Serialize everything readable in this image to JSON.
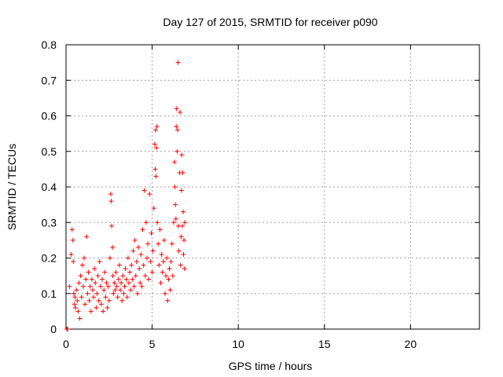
{
  "chart_data": {
    "type": "scatter",
    "title": "Day 127 of 2015, SRMTID for receiver p090",
    "xlabel": "GPS time / hours",
    "ylabel": "SRMTID / TECUs",
    "xlim": [
      0,
      24
    ],
    "ylim": [
      0,
      0.8
    ],
    "xticks": [
      0,
      5,
      10,
      15,
      20
    ],
    "xtick_labels": [
      "0",
      "5",
      "10",
      "15",
      "20"
    ],
    "yticks": [
      0,
      0.1,
      0.2,
      0.3,
      0.4,
      0.5,
      0.6,
      0.7,
      0.8
    ],
    "ytick_labels": [
      "0",
      "0.1",
      "0.2",
      "0.3",
      "0.4",
      "0.5",
      "0.6",
      "0.7",
      "0.8"
    ],
    "grid": true,
    "marker": "+",
    "color": "#ff0000",
    "series": [
      {
        "name": "p090",
        "points": [
          [
            0.05,
            0.0
          ],
          [
            0.1,
            0.0
          ],
          [
            0.2,
            0.12
          ],
          [
            0.3,
            0.21
          ],
          [
            0.35,
            0.28
          ],
          [
            0.4,
            0.25
          ],
          [
            0.42,
            0.19
          ],
          [
            0.45,
            0.1
          ],
          [
            0.5,
            0.07
          ],
          [
            0.52,
            0.09
          ],
          [
            0.55,
            0.06
          ],
          [
            0.6,
            0.11
          ],
          [
            0.65,
            0.08
          ],
          [
            0.7,
            0.05
          ],
          [
            0.75,
            0.13
          ],
          [
            0.8,
            0.03
          ],
          [
            0.85,
            0.15
          ],
          [
            0.9,
            0.09
          ],
          [
            0.95,
            0.18
          ],
          [
            1.0,
            0.12
          ],
          [
            1.05,
            0.2
          ],
          [
            1.1,
            0.07
          ],
          [
            1.15,
            0.14
          ],
          [
            1.2,
            0.26
          ],
          [
            1.25,
            0.1
          ],
          [
            1.3,
            0.16
          ],
          [
            1.35,
            0.08
          ],
          [
            1.4,
            0.12
          ],
          [
            1.45,
            0.05
          ],
          [
            1.5,
            0.14
          ],
          [
            1.55,
            0.11
          ],
          [
            1.6,
            0.09
          ],
          [
            1.65,
            0.17
          ],
          [
            1.7,
            0.13
          ],
          [
            1.75,
            0.06
          ],
          [
            1.8,
            0.1
          ],
          [
            1.85,
            0.15
          ],
          [
            1.9,
            0.08
          ],
          [
            1.95,
            0.19
          ],
          [
            2.0,
            0.12
          ],
          [
            2.05,
            0.07
          ],
          [
            2.1,
            0.14
          ],
          [
            2.15,
            0.05
          ],
          [
            2.2,
            0.11
          ],
          [
            2.25,
            0.16
          ],
          [
            2.3,
            0.09
          ],
          [
            2.35,
            0.13
          ],
          [
            2.4,
            0.06
          ],
          [
            2.45,
            0.12
          ],
          [
            2.5,
            0.08
          ],
          [
            2.55,
            0.2
          ],
          [
            2.6,
            0.38
          ],
          [
            2.62,
            0.36
          ],
          [
            2.65,
            0.29
          ],
          [
            2.7,
            0.23
          ],
          [
            2.72,
            0.15
          ],
          [
            2.75,
            0.1
          ],
          [
            2.8,
            0.13
          ],
          [
            2.85,
            0.11
          ],
          [
            2.9,
            0.16
          ],
          [
            2.95,
            0.12
          ],
          [
            3.0,
            0.09
          ],
          [
            3.05,
            0.14
          ],
          [
            3.1,
            0.18
          ],
          [
            3.15,
            0.11
          ],
          [
            3.2,
            0.13
          ],
          [
            3.25,
            0.08
          ],
          [
            3.3,
            0.15
          ],
          [
            3.35,
            0.1
          ],
          [
            3.4,
            0.12
          ],
          [
            3.45,
            0.17
          ],
          [
            3.5,
            0.14
          ],
          [
            3.55,
            0.09
          ],
          [
            3.6,
            0.2
          ],
          [
            3.65,
            0.13
          ],
          [
            3.7,
            0.16
          ],
          [
            3.75,
            0.11
          ],
          [
            3.8,
            0.18
          ],
          [
            3.85,
            0.14
          ],
          [
            3.9,
            0.22
          ],
          [
            3.95,
            0.12
          ],
          [
            4.0,
            0.25
          ],
          [
            4.05,
            0.15
          ],
          [
            4.1,
            0.19
          ],
          [
            4.15,
            0.1
          ],
          [
            4.2,
            0.23
          ],
          [
            4.25,
            0.17
          ],
          [
            4.3,
            0.13
          ],
          [
            4.35,
            0.21
          ],
          [
            4.4,
            0.12
          ],
          [
            4.45,
            0.28
          ],
          [
            4.5,
            0.18
          ],
          [
            4.55,
            0.39
          ],
          [
            4.6,
            0.15
          ],
          [
            4.65,
            0.3
          ],
          [
            4.7,
            0.2
          ],
          [
            4.75,
            0.24
          ],
          [
            4.8,
            0.14
          ],
          [
            4.85,
            0.38
          ],
          [
            4.9,
            0.19
          ],
          [
            4.95,
            0.27
          ],
          [
            5.0,
            0.16
          ],
          [
            5.05,
            0.22
          ],
          [
            5.1,
            0.34
          ],
          [
            5.15,
            0.52
          ],
          [
            5.18,
            0.45
          ],
          [
            5.2,
            0.56
          ],
          [
            5.22,
            0.43
          ],
          [
            5.25,
            0.51
          ],
          [
            5.28,
            0.57
          ],
          [
            5.3,
            0.3
          ],
          [
            5.35,
            0.24
          ],
          [
            5.4,
            0.18
          ],
          [
            5.45,
            0.28
          ],
          [
            5.5,
            0.13
          ],
          [
            5.55,
            0.21
          ],
          [
            5.6,
            0.16
          ],
          [
            5.65,
            0.19
          ],
          [
            5.7,
            0.25
          ],
          [
            5.75,
            0.1
          ],
          [
            5.8,
            0.15
          ],
          [
            5.85,
            0.2
          ],
          [
            5.9,
            0.08
          ],
          [
            5.95,
            0.14
          ],
          [
            6.0,
            0.17
          ],
          [
            6.05,
            0.11
          ],
          [
            6.1,
            0.19
          ],
          [
            6.15,
            0.24
          ],
          [
            6.2,
            0.15
          ],
          [
            6.25,
            0.3
          ],
          [
            6.3,
            0.47
          ],
          [
            6.32,
            0.4
          ],
          [
            6.35,
            0.35
          ],
          [
            6.38,
            0.31
          ],
          [
            6.4,
            0.57
          ],
          [
            6.42,
            0.62
          ],
          [
            6.45,
            0.5
          ],
          [
            6.48,
            0.56
          ],
          [
            6.5,
            0.75
          ],
          [
            6.52,
            0.29
          ],
          [
            6.55,
            0.22
          ],
          [
            6.6,
            0.44
          ],
          [
            6.62,
            0.61
          ],
          [
            6.65,
            0.18
          ],
          [
            6.68,
            0.26
          ],
          [
            6.7,
            0.39
          ],
          [
            6.72,
            0.49
          ],
          [
            6.75,
            0.29
          ],
          [
            6.78,
            0.44
          ],
          [
            6.8,
            0.33
          ],
          [
            6.82,
            0.21
          ],
          [
            6.85,
            0.25
          ],
          [
            6.88,
            0.17
          ],
          [
            6.9,
            0.3
          ]
        ]
      }
    ]
  }
}
